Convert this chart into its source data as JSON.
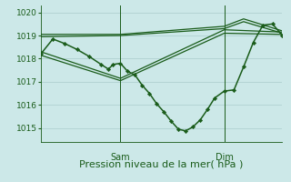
{
  "background_color": "#cce8e8",
  "grid_color": "#aacccc",
  "line_color": "#1a5c1a",
  "marker_color": "#1a5c1a",
  "xlabel": "Pression niveau de la mer( hPa )",
  "xlabel_fontsize": 8,
  "ylim": [
    1014.4,
    1020.3
  ],
  "yticks": [
    1015,
    1016,
    1017,
    1018,
    1019,
    1020
  ],
  "vline_positions": [
    0.33,
    0.76
  ],
  "vline_labels": [
    "Sam",
    "Dim"
  ],
  "series": [
    {
      "x": [
        0.0,
        0.05,
        0.1,
        0.15,
        0.2,
        0.25,
        0.28,
        0.3,
        0.33,
        0.36,
        0.39,
        0.42,
        0.45,
        0.48,
        0.51,
        0.54,
        0.57,
        0.6,
        0.63,
        0.66,
        0.69,
        0.72,
        0.76,
        0.8,
        0.84,
        0.88,
        0.92,
        0.96,
        1.0
      ],
      "y": [
        1018.2,
        1018.85,
        1018.65,
        1018.4,
        1018.1,
        1017.75,
        1017.55,
        1017.75,
        1017.8,
        1017.45,
        1017.3,
        1016.85,
        1016.5,
        1016.05,
        1015.7,
        1015.3,
        1014.95,
        1014.88,
        1015.05,
        1015.35,
        1015.8,
        1016.3,
        1016.6,
        1016.65,
        1017.65,
        1018.7,
        1019.45,
        1019.5,
        1019.0
      ],
      "marker": "D",
      "markersize": 2.2,
      "linewidth": 1.1,
      "zorder": 5
    },
    {
      "x": [
        0.0,
        0.33,
        0.76,
        1.0
      ],
      "y": [
        1018.15,
        1017.05,
        1019.1,
        1019.05
      ],
      "marker": null,
      "linewidth": 0.9,
      "zorder": 3
    },
    {
      "x": [
        0.0,
        0.33,
        0.76,
        1.0
      ],
      "y": [
        1018.3,
        1017.15,
        1019.25,
        1019.15
      ],
      "marker": null,
      "linewidth": 0.9,
      "zorder": 3
    },
    {
      "x": [
        0.0,
        0.33,
        0.76,
        0.84,
        1.0
      ],
      "y": [
        1018.95,
        1019.0,
        1019.3,
        1019.6,
        1019.1
      ],
      "marker": null,
      "linewidth": 0.9,
      "zorder": 3
    },
    {
      "x": [
        0.0,
        0.33,
        0.76,
        0.84,
        1.0
      ],
      "y": [
        1019.05,
        1019.05,
        1019.4,
        1019.72,
        1019.2
      ],
      "marker": null,
      "linewidth": 0.9,
      "zorder": 3
    }
  ]
}
